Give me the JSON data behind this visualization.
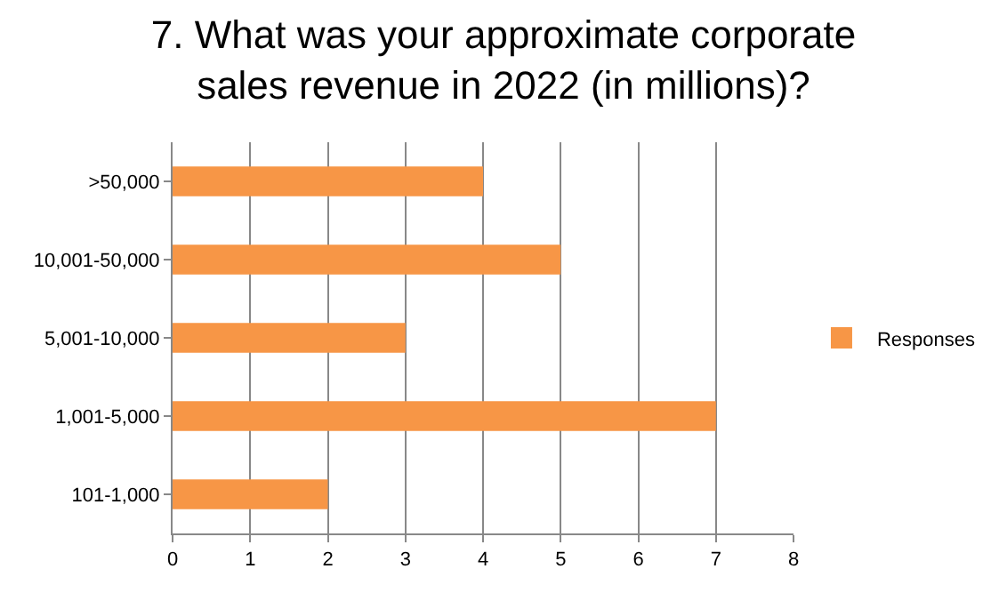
{
  "chart_data": {
    "type": "bar",
    "orientation": "horizontal",
    "title": "7. What was your approximate corporate sales revenue in 2022 (in millions)?",
    "categories": [
      ">50,000",
      "10,001-50,000",
      "5,001-10,000",
      "1,001-5,000",
      "101-1,000"
    ],
    "series": [
      {
        "name": "Responses",
        "color": "#f79646",
        "values": [
          4,
          5,
          3,
          7,
          2
        ]
      }
    ],
    "xlim": [
      0,
      8
    ],
    "xticks": [
      0,
      1,
      2,
      3,
      4,
      5,
      6,
      7,
      8
    ],
    "grid": "x",
    "legend": "right"
  }
}
